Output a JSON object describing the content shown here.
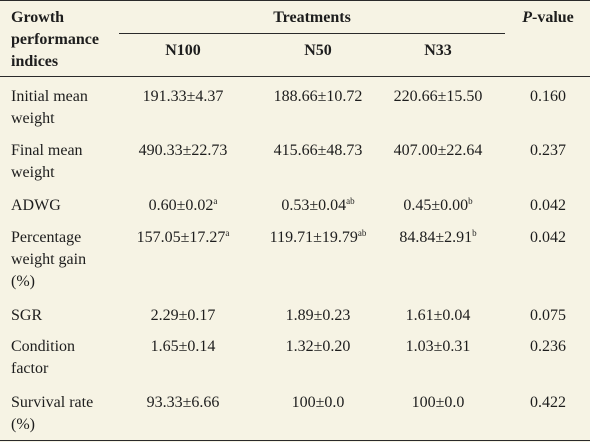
{
  "header": {
    "col1": [
      "Growth",
      "performance",
      "indices"
    ],
    "treatments": "Treatments",
    "groups": [
      "N100",
      "N50",
      "N33"
    ],
    "pvalue_italic": "P",
    "pvalue_rest": "-value"
  },
  "rows": [
    {
      "label": [
        "Initial mean",
        "weight"
      ],
      "values": [
        {
          "v": "191.33±4.37",
          "s": ""
        },
        {
          "v": "188.66±10.72",
          "s": ""
        },
        {
          "v": "220.66±15.50",
          "s": ""
        }
      ],
      "p": "0.160"
    },
    {
      "label": [
        "Final mean",
        "weight"
      ],
      "values": [
        {
          "v": "490.33±22.73",
          "s": ""
        },
        {
          "v": "415.66±48.73",
          "s": ""
        },
        {
          "v": "407.00±22.64",
          "s": ""
        }
      ],
      "p": "0.237"
    },
    {
      "label": [
        "ADWG"
      ],
      "values": [
        {
          "v": "0.60±0.02",
          "s": "a"
        },
        {
          "v": "0.53±0.04",
          "s": "ab"
        },
        {
          "v": "0.45±0.00",
          "s": "b"
        }
      ],
      "p": "0.042"
    },
    {
      "label": [
        "Percentage",
        "weight gain",
        "(%)"
      ],
      "values": [
        {
          "v": "157.05±17.27",
          "s": "a"
        },
        {
          "v": "119.71±19.79",
          "s": "ab"
        },
        {
          "v": "84.84±2.91",
          "s": "b"
        }
      ],
      "p": "0.042"
    },
    {
      "label": [
        "SGR"
      ],
      "values": [
        {
          "v": "2.29±0.17",
          "s": ""
        },
        {
          "v": "1.89±0.23",
          "s": ""
        },
        {
          "v": "1.61±0.04",
          "s": ""
        }
      ],
      "p": "0.075"
    },
    {
      "label": [
        "Condition",
        "factor"
      ],
      "values": [
        {
          "v": "1.65±0.14",
          "s": ""
        },
        {
          "v": "1.32±0.20",
          "s": ""
        },
        {
          "v": "1.03±0.31",
          "s": ""
        }
      ],
      "p": "0.236"
    },
    {
      "label": [
        "Survival rate",
        "(%)"
      ],
      "values": [
        {
          "v": "93.33±6.66",
          "s": ""
        },
        {
          "v": "100±0.0",
          "s": ""
        },
        {
          "v": "100±0.0",
          "s": ""
        }
      ],
      "p": "0.422"
    }
  ]
}
